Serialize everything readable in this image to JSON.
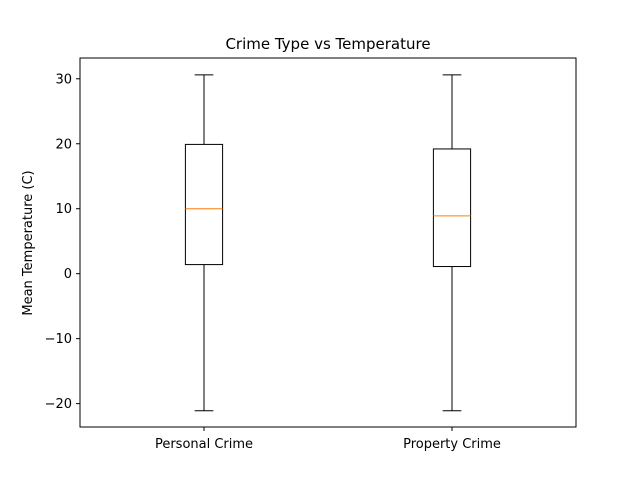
{
  "chart_data": {
    "type": "box",
    "title": "Crime Type vs Temperature",
    "xlabel": "",
    "ylabel": "Mean Temperature (C)",
    "ylim": [
      -23.6,
      33.2
    ],
    "yticks": [
      -20,
      -10,
      0,
      10,
      20,
      30
    ],
    "ytick_labels": [
      "−20",
      "−10",
      "0",
      "10",
      "20",
      "30"
    ],
    "grid": false,
    "categories": [
      "Personal Crime",
      "Property Crime"
    ],
    "boxes": [
      {
        "category": "Personal Crime",
        "whisker_low": -21.1,
        "q1": 1.4,
        "median": 10.0,
        "q3": 19.9,
        "whisker_high": 30.6
      },
      {
        "category": "Property Crime",
        "whisker_low": -21.1,
        "q1": 1.1,
        "median": 8.9,
        "q3": 19.2,
        "whisker_high": 30.6
      }
    ],
    "colors": {
      "box": "#000000",
      "median": "#ff7f0e"
    }
  }
}
